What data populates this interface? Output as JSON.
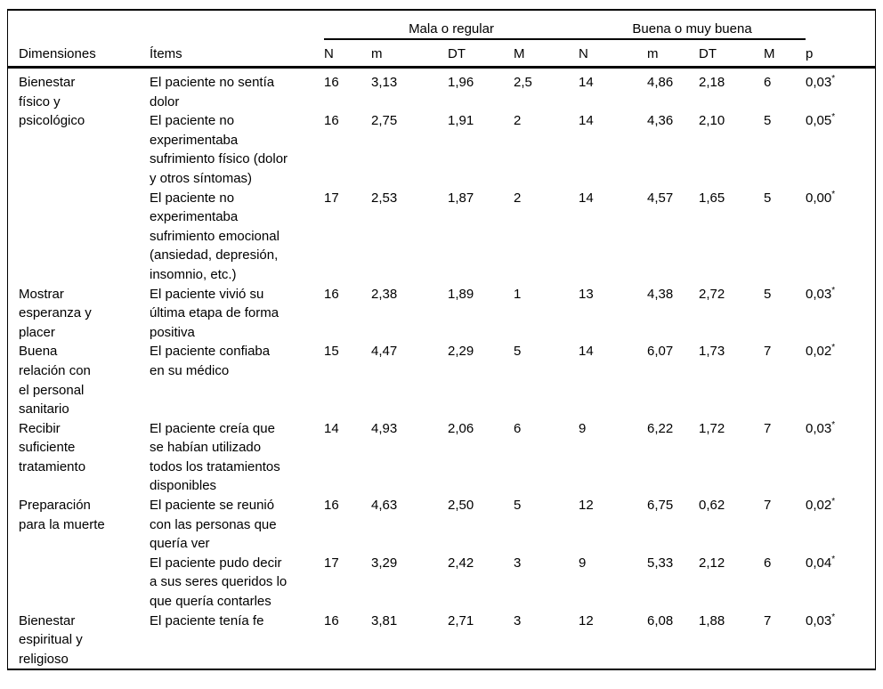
{
  "table": {
    "header": {
      "dimension": "Dimensiones",
      "item": "Ítems",
      "group_mala": "Mala o regular",
      "group_buena": "Buena o muy buena",
      "stats": [
        "N",
        "m",
        "DT",
        "M"
      ],
      "p": "p"
    },
    "rows": [
      {
        "dimension": "Bienestar\nfísico y\npsicológico",
        "item": "El paciente no sentía\ndolor",
        "mala": [
          "16",
          "3,13",
          "1,96",
          "2,5"
        ],
        "buena": [
          "14",
          "4,86",
          "2,18",
          "6"
        ],
        "p": "0,03",
        "star": "*"
      },
      {
        "item": "El paciente no\nexperimentaba\nsufrimiento físico (dolor\ny otros síntomas)",
        "mala": [
          "16",
          "2,75",
          "1,91",
          "2"
        ],
        "buena": [
          "14",
          "4,36",
          "2,10",
          "5"
        ],
        "p": "0,05",
        "star": "*"
      },
      {
        "item": "El paciente no\nexperimentaba\nsufrimiento emocional\n(ansiedad, depresión,\ninsomnio, etc.)",
        "mala": [
          "17",
          "2,53",
          "1,87",
          "2"
        ],
        "buena": [
          "14",
          "4,57",
          "1,65",
          "5"
        ],
        "p": "0,00",
        "star": "*"
      },
      {
        "dimension": "Mostrar\nesperanza y\nplacer",
        "item": "El paciente vivió su\núltima etapa de forma\npositiva",
        "mala": [
          "16",
          "2,38",
          "1,89",
          "1"
        ],
        "buena": [
          "13",
          "4,38",
          "2,72",
          "5"
        ],
        "p": "0,03",
        "star": "*"
      },
      {
        "dimension": "Buena\nrelación con\nel personal\nsanitario",
        "item": "El paciente confiaba\nen su médico",
        "mala": [
          "15",
          "4,47",
          "2,29",
          "5"
        ],
        "buena": [
          "14",
          "6,07",
          "1,73",
          "7"
        ],
        "p": "0,02",
        "star": "*"
      },
      {
        "dimension": "Recibir\nsuficiente\ntratamiento",
        "item": "El paciente creía que\nse habían utilizado\ntodos los tratamientos\ndisponibles",
        "mala": [
          "14",
          "4,93",
          "2,06",
          "6"
        ],
        "buena": [
          "9",
          "6,22",
          "1,72",
          "7"
        ],
        "p": "0,03",
        "star": "*"
      },
      {
        "dimension": "Preparación\npara la muerte",
        "item": "El paciente se reunió\ncon las personas que\nquería ver",
        "mala": [
          "16",
          "4,63",
          "2,50",
          "5"
        ],
        "buena": [
          "12",
          "6,75",
          "0,62",
          "7"
        ],
        "p": "0,02",
        "star": "*"
      },
      {
        "item": "El paciente pudo decir\na sus seres queridos lo\nque quería contarles",
        "mala": [
          "17",
          "3,29",
          "2,42",
          "3"
        ],
        "buena": [
          "9",
          "5,33",
          "2,12",
          "6"
        ],
        "p": "0,04",
        "star": "*"
      },
      {
        "dimension": "Bienestar\nespiritual y\nreligioso",
        "item": "El paciente tenía fe",
        "mala": [
          "16",
          "3,81",
          "2,71",
          "3"
        ],
        "buena": [
          "12",
          "6,08",
          "1,88",
          "7"
        ],
        "p": "0,03",
        "star": "*"
      }
    ]
  }
}
